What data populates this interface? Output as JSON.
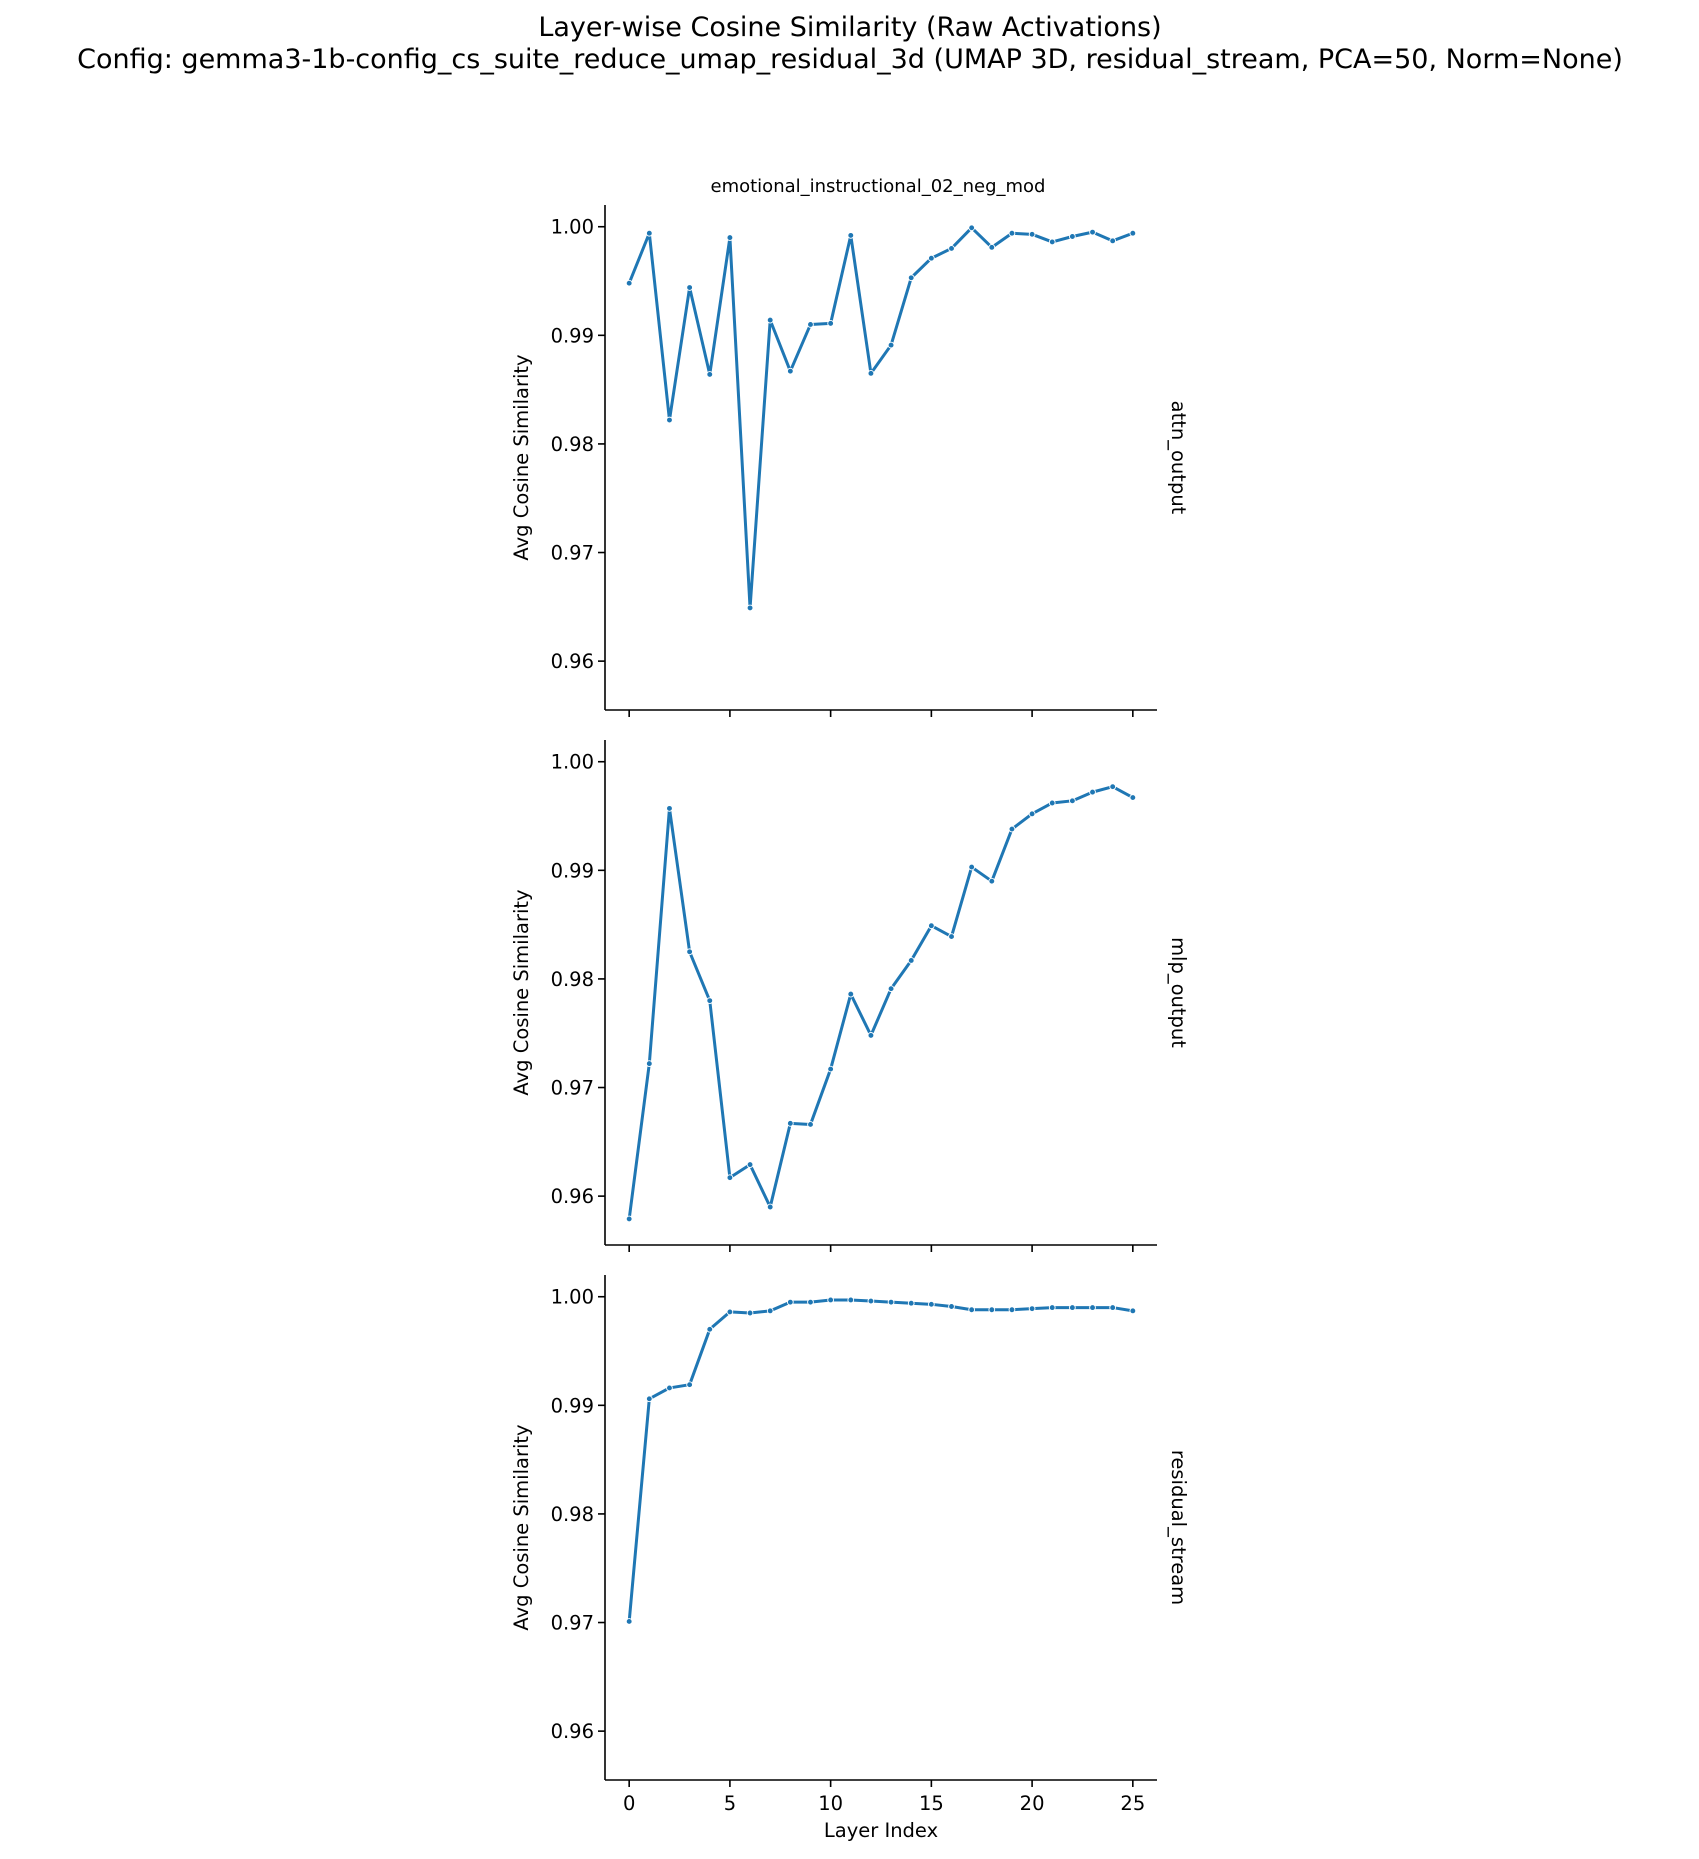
{
  "figure": {
    "title_line1": "Layer-wise Cosine Similarity (Raw Activations)",
    "title_line2": "Config: gemma3-1b-config_cs_suite_reduce_umap_residual_3d (UMAP 3D, residual_stream, PCA=50, Norm=None)",
    "column_title": "emotional_instructional_02_neg_mod"
  },
  "chart_data": {
    "type": "line",
    "xlabel": "Layer Index",
    "ylabel": "Avg Cosine Similarity",
    "xlim": [
      -1.2,
      26.2
    ],
    "ylim": [
      0.9555,
      1.002
    ],
    "xticks": [
      0,
      5,
      10,
      15,
      20,
      25
    ],
    "xtick_labels": [
      "0",
      "5",
      "10",
      "15",
      "20",
      "25"
    ],
    "yticks": [
      0.96,
      0.97,
      0.98,
      0.99,
      1.0
    ],
    "ytick_labels": [
      "0.96",
      "0.97",
      "0.98",
      "0.99",
      "1.00"
    ],
    "color": "#1f77b4",
    "grid": false,
    "panels": [
      {
        "row_label": "attn_output",
        "x": [
          0,
          1,
          2,
          3,
          4,
          5,
          6,
          7,
          8,
          9,
          10,
          11,
          12,
          13,
          14,
          15,
          16,
          17,
          18,
          19,
          20,
          21,
          22,
          23,
          24,
          25
        ],
        "values": [
          0.9948,
          0.9994,
          0.9822,
          0.9944,
          0.9864,
          0.999,
          0.9649,
          0.9914,
          0.9867,
          0.991,
          0.9911,
          0.9992,
          0.9865,
          0.9891,
          0.9953,
          0.9971,
          0.998,
          0.9999,
          0.9981,
          0.9994,
          0.9993,
          0.9986,
          0.9991,
          0.9995,
          0.9987,
          0.9994
        ]
      },
      {
        "row_label": "mlp_output",
        "x": [
          0,
          1,
          2,
          3,
          4,
          5,
          6,
          7,
          8,
          9,
          10,
          11,
          12,
          13,
          14,
          15,
          16,
          17,
          18,
          19,
          20,
          21,
          22,
          23,
          24,
          25
        ],
        "values": [
          0.9579,
          0.9722,
          0.9957,
          0.9825,
          0.978,
          0.9617,
          0.9629,
          0.959,
          0.9667,
          0.9666,
          0.9717,
          0.9786,
          0.9748,
          0.9791,
          0.9817,
          0.9849,
          0.9839,
          0.9903,
          0.989,
          0.9938,
          0.9952,
          0.9962,
          0.9964,
          0.9972,
          0.9977,
          0.9967
        ]
      },
      {
        "row_label": "residual_stream",
        "x": [
          0,
          1,
          2,
          3,
          4,
          5,
          6,
          7,
          8,
          9,
          10,
          11,
          12,
          13,
          14,
          15,
          16,
          17,
          18,
          19,
          20,
          21,
          22,
          23,
          24,
          25
        ],
        "values": [
          0.9701,
          0.9906,
          0.9916,
          0.9919,
          0.997,
          0.9986,
          0.9985,
          0.9987,
          0.9995,
          0.9995,
          0.9997,
          0.9997,
          0.9996,
          0.9995,
          0.9994,
          0.9993,
          0.9991,
          0.9988,
          0.9988,
          0.9988,
          0.9989,
          0.999,
          0.999,
          0.999,
          0.999,
          0.9987
        ]
      }
    ]
  }
}
